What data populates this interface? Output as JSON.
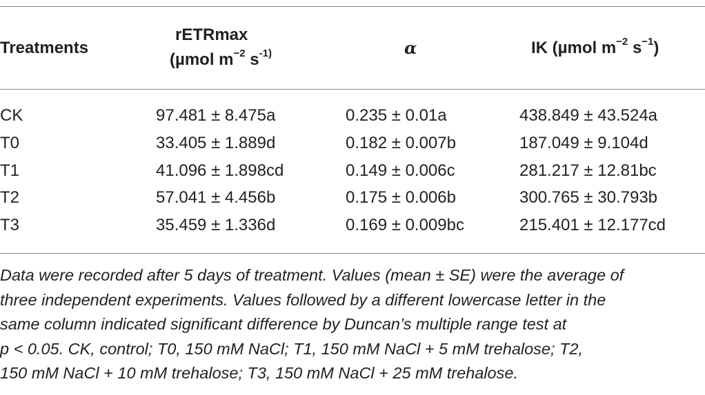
{
  "table": {
    "headers": {
      "treatments": "Treatments",
      "retr_line1": "rETRmax",
      "retr_line2_pre": "(µmol m",
      "retr_line2_sup1": "−2",
      "retr_line2_mid": " s",
      "retr_line2_sup2": "-1)",
      "alpha": "α",
      "ik_pre": "IK (µmol m",
      "ik_sup1": "−2",
      "ik_mid": " s",
      "ik_sup2": "−1",
      "ik_post": ")"
    },
    "rows": [
      {
        "treatment": "CK",
        "retr": "97.481 ± 8.475a",
        "alpha": "0.235 ± 0.01a",
        "ik": "438.849 ± 43.524a"
      },
      {
        "treatment": "T0",
        "retr": "33.405 ± 1.889d",
        "alpha": "0.182 ± 0.007b",
        "ik": "187.049 ± 9.104d"
      },
      {
        "treatment": "T1",
        "retr": "41.096 ± 1.898cd",
        "alpha": "0.149 ± 0.006c",
        "ik": "281.217 ± 12.81bc"
      },
      {
        "treatment": "T2",
        "retr": "57.041 ± 4.456b",
        "alpha": "0.175 ± 0.006b",
        "ik": "300.765 ± 30.793b"
      },
      {
        "treatment": "T3",
        "retr": "35.459 ± 1.336d",
        "alpha": "0.169 ± 0.009bc",
        "ik": "215.401 ± 12.177cd"
      }
    ]
  },
  "footnote": {
    "lines": [
      "Data were recorded after 5 days of treatment. Values (mean ± SE) were the average of",
      "three independent experiments. Values followed by a different lowercase letter in the",
      "same column indicated significant difference by Duncan’s multiple range test at",
      "p < 0.05. CK, control; T0, 150 mM NaCl; T1, 150 mM NaCl + 5 mM trehalose; T2,",
      "150 mM NaCl + 10 mM trehalose; T3, 150 mM NaCl + 25 mM trehalose."
    ]
  }
}
